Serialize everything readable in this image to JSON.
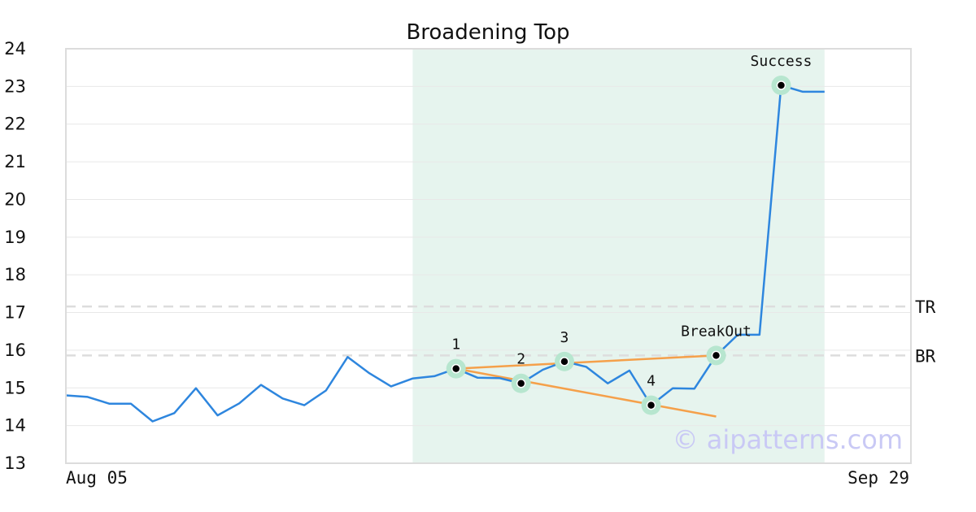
{
  "chart_data": {
    "type": "line",
    "title": "Broadening Top",
    "xlabel": "",
    "ylabel": "",
    "ylim": [
      13,
      24
    ],
    "yticks": [
      13,
      14,
      15,
      16,
      17,
      18,
      19,
      20,
      21,
      22,
      23,
      24
    ],
    "x_tick_labels": [
      "Aug 05",
      "Sep 29"
    ],
    "grid": "horizontal",
    "colors": {
      "price": "#2e86de",
      "trendline": "#f5a04a",
      "highlight": "#e6f4ee",
      "marker_halo": "#b7e6cf",
      "level_line": "#dddddd",
      "watermark": "#c9c9f5"
    },
    "price": [
      14.8,
      14.76,
      14.58,
      14.58,
      14.11,
      14.33,
      14.99,
      14.27,
      14.59,
      15.08,
      14.72,
      14.54,
      14.93,
      15.82,
      15.39,
      15.04,
      15.25,
      15.31,
      15.51,
      15.27,
      15.26,
      15.12,
      15.48,
      15.7,
      15.56,
      15.12,
      15.46,
      14.54,
      14.99,
      14.98,
      15.86,
      16.41,
      16.41,
      23.03,
      22.86,
      22.86
    ],
    "highlight_range": [
      16,
      35
    ],
    "pattern_points": [
      {
        "label": "1",
        "index": 18,
        "value": 15.51
      },
      {
        "label": "2",
        "index": 21,
        "value": 15.12
      },
      {
        "label": "3",
        "index": 23,
        "value": 15.7
      },
      {
        "label": "4",
        "index": 27,
        "value": 14.54
      },
      {
        "label": "BreakOut",
        "index": 30,
        "value": 15.86
      },
      {
        "label": "Success",
        "index": 33,
        "value": 23.03
      }
    ],
    "trendlines": [
      {
        "from": {
          "index": 18,
          "value": 15.51
        },
        "to": {
          "index": 30,
          "value": 15.86
        }
      },
      {
        "from": {
          "index": 18,
          "value": 15.51
        },
        "to": {
          "index": 30,
          "value": 14.24
        }
      }
    ],
    "levels": [
      {
        "label": "TR",
        "value": 17.16
      },
      {
        "label": "BR",
        "value": 15.86
      }
    ],
    "watermark": "© aipatterns.com"
  }
}
